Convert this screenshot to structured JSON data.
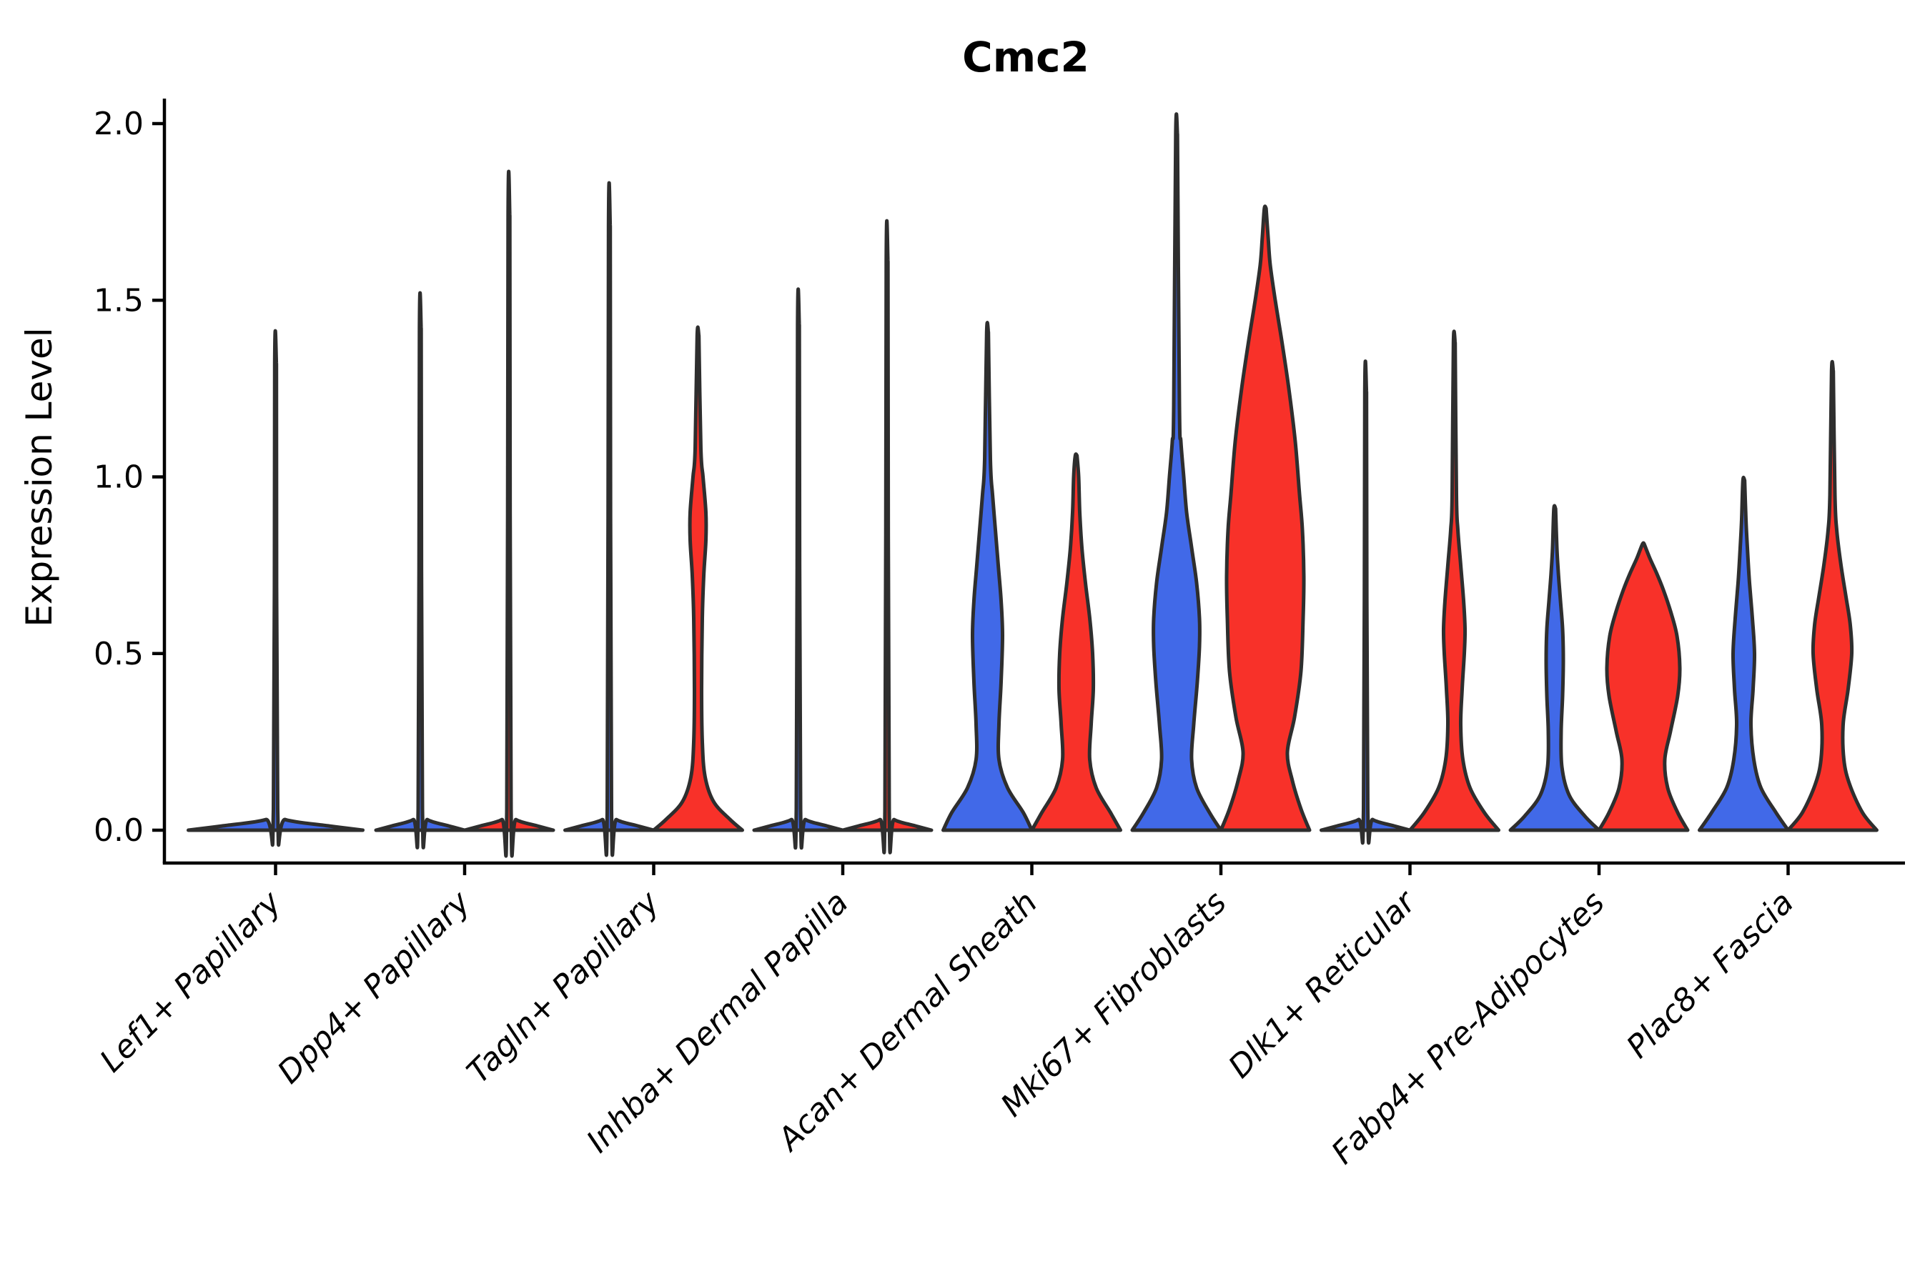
{
  "figure": {
    "title": "Cmc2"
  },
  "chart_data": {
    "type": "violin",
    "title": "Cmc2",
    "xlabel": "",
    "ylabel": "Expression Level",
    "ylim": [
      0,
      2.05
    ],
    "yticks": [
      "0.0",
      "0.5",
      "1.0",
      "1.5",
      "2.0"
    ],
    "ytick_values": [
      0.0,
      0.5,
      1.0,
      1.5,
      2.0
    ],
    "grid": false,
    "legend_position": "none",
    "split_violins": true,
    "colors": {
      "left_series": "#4169E8",
      "right_series": "#F83129",
      "violin_outline": "#2E2E2E",
      "axis": "#000000",
      "background": "#FFFFFF"
    },
    "categories": [
      "Lef1+ Papillary",
      "Dpp4+ Papillary",
      "Tagln+ Papillary",
      "Inhba+ Dermal Papilla",
      "Acan+ Dermal Sheath",
      "Mki67+ Fibroblasts",
      "Dlk1+ Reticular",
      "Fabp4+ Pre-Adipocytes",
      "Plac8+ Fascia"
    ],
    "violins": [
      {
        "category": "Lef1+ Papillary",
        "parts": [
          {
            "side": "full",
            "color": "left_series",
            "tip": 1.32,
            "profile": [
              [
                0,
                122
              ],
              [
                0.012,
                75
              ],
              [
                0.03,
                14
              ],
              [
                0.06,
                3
              ]
            ]
          }
        ]
      },
      {
        "category": "Dpp4+ Papillary",
        "parts": [
          {
            "side": "left",
            "color": "left_series",
            "tip": 1.42,
            "profile": [
              [
                0,
                62
              ],
              [
                0.012,
                40
              ],
              [
                0.03,
                10
              ],
              [
                0.06,
                3
              ]
            ]
          },
          {
            "side": "right",
            "color": "right_series",
            "tip": 1.74,
            "profile": [
              [
                0,
                62
              ],
              [
                0.012,
                40
              ],
              [
                0.03,
                10
              ],
              [
                0.06,
                3
              ]
            ]
          }
        ]
      },
      {
        "category": "Tagln+ Papillary",
        "parts": [
          {
            "side": "left",
            "color": "left_series",
            "tip": 1.71,
            "profile": [
              [
                0,
                62
              ],
              [
                0.012,
                40
              ],
              [
                0.03,
                10
              ],
              [
                0.06,
                3
              ]
            ]
          },
          {
            "side": "right",
            "color": "right_series",
            "tip": 1.4,
            "profile": [
              [
                0,
                62
              ],
              [
                0.03,
                45
              ],
              [
                0.08,
                22
              ],
              [
                0.15,
                10
              ],
              [
                0.25,
                6
              ],
              [
                0.4,
                5
              ],
              [
                0.6,
                6
              ],
              [
                0.72,
                8
              ],
              [
                0.82,
                11
              ],
              [
                0.9,
                11
              ],
              [
                1.0,
                7
              ],
              [
                1.08,
                4
              ]
            ]
          }
        ]
      },
      {
        "category": "Inhba+ Dermal Papilla",
        "parts": [
          {
            "side": "left",
            "color": "left_series",
            "tip": 1.43,
            "profile": [
              [
                0,
                62
              ],
              [
                0.012,
                40
              ],
              [
                0.03,
                10
              ],
              [
                0.06,
                3
              ]
            ]
          },
          {
            "side": "right",
            "color": "right_series",
            "tip": 1.61,
            "profile": [
              [
                0,
                62
              ],
              [
                0.012,
                40
              ],
              [
                0.03,
                10
              ],
              [
                0.06,
                3
              ]
            ]
          }
        ]
      },
      {
        "category": "Acan+ Dermal Sheath",
        "parts": [
          {
            "side": "left",
            "color": "left_series",
            "tip": 1.41,
            "profile": [
              [
                0,
                62
              ],
              [
                0.05,
                50
              ],
              [
                0.12,
                28
              ],
              [
                0.2,
                16
              ],
              [
                0.3,
                16
              ],
              [
                0.42,
                19
              ],
              [
                0.55,
                21
              ],
              [
                0.65,
                19
              ],
              [
                0.75,
                15
              ],
              [
                0.85,
                11
              ],
              [
                0.95,
                7
              ],
              [
                1.05,
                4
              ]
            ]
          },
          {
            "side": "right",
            "color": "right_series",
            "tip": 1.06,
            "profile": [
              [
                0,
                62
              ],
              [
                0.05,
                48
              ],
              [
                0.12,
                28
              ],
              [
                0.2,
                19
              ],
              [
                0.3,
                21
              ],
              [
                0.4,
                24
              ],
              [
                0.5,
                23
              ],
              [
                0.6,
                19
              ],
              [
                0.7,
                13
              ],
              [
                0.8,
                8
              ],
              [
                0.9,
                5
              ],
              [
                1.0,
                3.5
              ]
            ]
          }
        ]
      },
      {
        "category": "Mki67+ Fibroblasts",
        "parts": [
          {
            "side": "left",
            "color": "left_series",
            "tip": 1.97,
            "profile": [
              [
                0,
                62
              ],
              [
                0.05,
                46
              ],
              [
                0.12,
                28
              ],
              [
                0.2,
                21
              ],
              [
                0.3,
                24
              ],
              [
                0.42,
                29
              ],
              [
                0.52,
                32
              ],
              [
                0.6,
                32
              ],
              [
                0.7,
                28
              ],
              [
                0.8,
                21
              ],
              [
                0.9,
                14
              ],
              [
                1.0,
                10
              ],
              [
                1.1,
                6
              ],
              [
                1.2,
                4
              ]
            ]
          },
          {
            "side": "right",
            "color": "right_series",
            "tip": 1.76,
            "profile": [
              [
                0,
                62
              ],
              [
                0.06,
                50
              ],
              [
                0.14,
                38
              ],
              [
                0.22,
                31
              ],
              [
                0.32,
                41
              ],
              [
                0.45,
                50
              ],
              [
                0.6,
                53
              ],
              [
                0.72,
                54
              ],
              [
                0.85,
                52
              ],
              [
                0.95,
                48
              ],
              [
                1.1,
                42
              ],
              [
                1.25,
                33
              ],
              [
                1.4,
                22
              ],
              [
                1.5,
                14
              ],
              [
                1.6,
                7
              ],
              [
                1.68,
                4
              ]
            ]
          }
        ]
      },
      {
        "category": "Dlk1+ Reticular",
        "parts": [
          {
            "side": "left",
            "color": "left_series",
            "tip": 1.24,
            "profile": [
              [
                0,
                62
              ],
              [
                0.012,
                40
              ],
              [
                0.03,
                10
              ],
              [
                0.06,
                3
              ]
            ]
          },
          {
            "side": "right",
            "color": "right_series",
            "tip": 1.38,
            "profile": [
              [
                0,
                62
              ],
              [
                0.05,
                42
              ],
              [
                0.12,
                22
              ],
              [
                0.2,
                12
              ],
              [
                0.3,
                9
              ],
              [
                0.4,
                11
              ],
              [
                0.5,
                14
              ],
              [
                0.57,
                15
              ],
              [
                0.65,
                13
              ],
              [
                0.75,
                9
              ],
              [
                0.85,
                5
              ],
              [
                0.95,
                3
              ]
            ]
          }
        ]
      },
      {
        "category": "Fabp4+ Pre-Adipocytes",
        "parts": [
          {
            "side": "left",
            "color": "left_series",
            "tip": 0.91,
            "profile": [
              [
                0,
                62
              ],
              [
                0.04,
                42
              ],
              [
                0.1,
                20
              ],
              [
                0.18,
                10
              ],
              [
                0.28,
                9
              ],
              [
                0.38,
                11
              ],
              [
                0.48,
                12
              ],
              [
                0.57,
                11
              ],
              [
                0.65,
                8
              ],
              [
                0.73,
                5
              ],
              [
                0.8,
                3
              ]
            ]
          },
          {
            "side": "right",
            "color": "right_series",
            "tip": 0.81,
            "profile": [
              [
                0,
                62
              ],
              [
                0.05,
                48
              ],
              [
                0.12,
                34
              ],
              [
                0.2,
                30
              ],
              [
                0.28,
                38
              ],
              [
                0.38,
                48
              ],
              [
                0.46,
                51
              ],
              [
                0.55,
                47
              ],
              [
                0.62,
                38
              ],
              [
                0.68,
                28
              ],
              [
                0.73,
                18
              ],
              [
                0.77,
                9
              ]
            ]
          }
        ]
      },
      {
        "category": "Plac8+ Fascia",
        "parts": [
          {
            "side": "left",
            "color": "left_series",
            "tip": 0.99,
            "profile": [
              [
                0,
                62
              ],
              [
                0.05,
                45
              ],
              [
                0.12,
                24
              ],
              [
                0.2,
                14
              ],
              [
                0.3,
                10
              ],
              [
                0.4,
                13
              ],
              [
                0.5,
                15
              ],
              [
                0.6,
                12
              ],
              [
                0.7,
                8
              ],
              [
                0.8,
                5
              ],
              [
                0.88,
                3
              ]
            ]
          },
          {
            "side": "right",
            "color": "right_series",
            "tip": 1.3,
            "profile": [
              [
                0,
                62
              ],
              [
                0.05,
                42
              ],
              [
                0.13,
                24
              ],
              [
                0.2,
                16
              ],
              [
                0.3,
                15
              ],
              [
                0.4,
                22
              ],
              [
                0.5,
                27
              ],
              [
                0.58,
                25
              ],
              [
                0.66,
                19
              ],
              [
                0.75,
                12
              ],
              [
                0.85,
                6
              ],
              [
                0.95,
                3.5
              ]
            ]
          }
        ]
      }
    ]
  }
}
